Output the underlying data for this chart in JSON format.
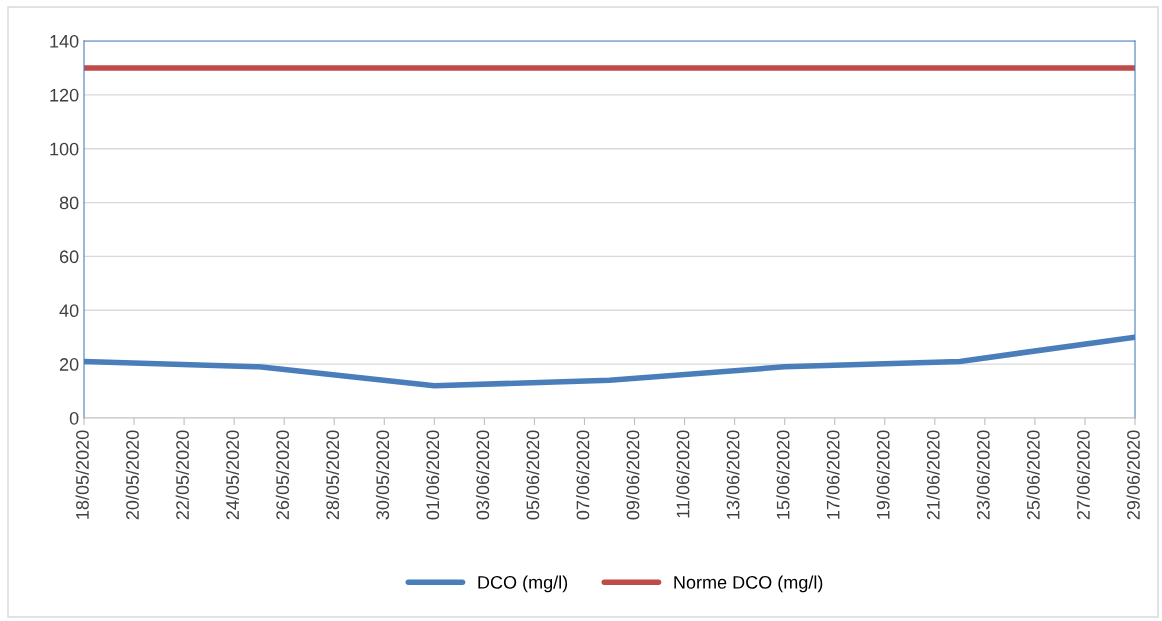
{
  "chart_data": {
    "type": "line",
    "x": [
      "2020-05-18",
      "2020-05-25",
      "2020-06-01",
      "2020-06-08",
      "2020-06-15",
      "2020-06-22",
      "2020-06-29"
    ],
    "series": [
      {
        "name": "DCO (mg/l)",
        "color": "#4a7ebb",
        "values": [
          21,
          19,
          12,
          14,
          19,
          21,
          30
        ]
      },
      {
        "name": "Norme DCO (mg/l)",
        "color": "#be4b48",
        "values": [
          130,
          130,
          130,
          130,
          130,
          130,
          130
        ]
      }
    ],
    "xlim": [
      "2020-05-18",
      "2020-06-29"
    ],
    "xticks": [
      {
        "value": "2020-05-18",
        "label": "18/05/2020"
      },
      {
        "value": "2020-05-20",
        "label": "20/05/2020"
      },
      {
        "value": "2020-05-22",
        "label": "22/05/2020"
      },
      {
        "value": "2020-05-24",
        "label": "24/05/2020"
      },
      {
        "value": "2020-05-26",
        "label": "26/05/2020"
      },
      {
        "value": "2020-05-28",
        "label": "28/05/2020"
      },
      {
        "value": "2020-05-30",
        "label": "30/05/2020"
      },
      {
        "value": "2020-06-01",
        "label": "01/06/2020"
      },
      {
        "value": "2020-06-03",
        "label": "03/06/2020"
      },
      {
        "value": "2020-06-05",
        "label": "05/06/2020"
      },
      {
        "value": "2020-06-07",
        "label": "07/06/2020"
      },
      {
        "value": "2020-06-09",
        "label": "09/06/2020"
      },
      {
        "value": "2020-06-11",
        "label": "11/06/2020"
      },
      {
        "value": "2020-06-13",
        "label": "13/06/2020"
      },
      {
        "value": "2020-06-15",
        "label": "15/06/2020"
      },
      {
        "value": "2020-06-17",
        "label": "17/06/2020"
      },
      {
        "value": "2020-06-19",
        "label": "19/06/2020"
      },
      {
        "value": "2020-06-21",
        "label": "21/06/2020"
      },
      {
        "value": "2020-06-23",
        "label": "23/06/2020"
      },
      {
        "value": "2020-06-25",
        "label": "25/06/2020"
      },
      {
        "value": "2020-06-27",
        "label": "27/06/2020"
      },
      {
        "value": "2020-06-29",
        "label": "29/06/2020"
      }
    ],
    "ylim": [
      0,
      140
    ],
    "yticks": [
      0,
      20,
      40,
      60,
      80,
      100,
      120,
      140
    ],
    "grid": "y",
    "legend": "bottom",
    "marker": "none",
    "line_style": "solid"
  }
}
